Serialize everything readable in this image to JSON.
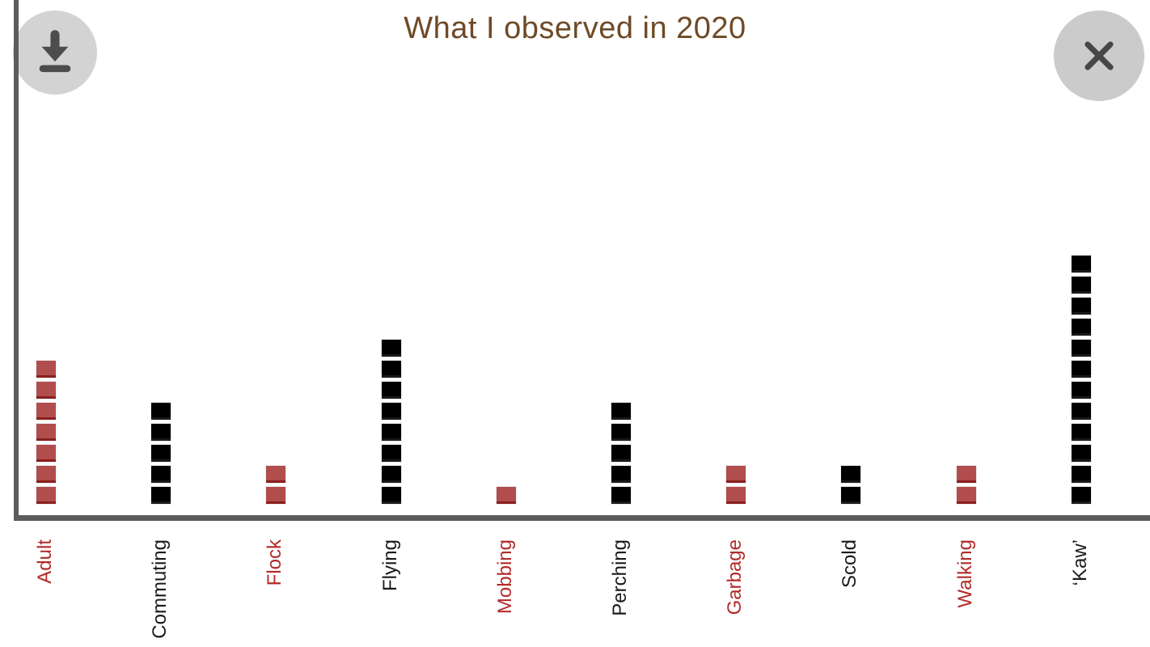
{
  "header": {
    "title": "What I observed in 2020",
    "title_color": "#6d4a26"
  },
  "toolbar": {
    "download_button": "download",
    "close_button": "close"
  },
  "colors": {
    "axis": "#5c5c5c",
    "button_background": "#d3d3d3",
    "button_icon": "#4d4d4d",
    "red_unit_fill": "#b14d4d",
    "red_unit_edge": "#8b1f1f",
    "black_unit_fill": "#000000",
    "red_label": "#b22a2a",
    "black_label": "#1a1a1a"
  },
  "chart_data": {
    "type": "bar",
    "variant": "unit-square-waffle-columns",
    "title": "What I observed in 2020",
    "xlabel": "",
    "ylabel": "",
    "legend": "none",
    "grid": false,
    "unit_value": 1,
    "ylim": [
      0,
      12
    ],
    "categories": [
      "Adult",
      "Commuting",
      "Flock",
      "Flying",
      "Mobbing",
      "Perching",
      "Garbage",
      "Scold",
      "Walking",
      "‘Kaw’"
    ],
    "values": [
      7,
      5,
      2,
      8,
      1,
      5,
      2,
      2,
      2,
      12
    ],
    "colors": [
      "#b14d4d",
      "#000000",
      "#b14d4d",
      "#000000",
      "#b14d4d",
      "#000000",
      "#b14d4d",
      "#000000",
      "#b14d4d",
      "#000000"
    ],
    "edge_colors": [
      "#8b1f1f",
      "#1a1a1a",
      "#8b1f1f",
      "#1a1a1a",
      "#8b1f1f",
      "#1a1a1a",
      "#8b1f1f",
      "#1a1a1a",
      "#8b1f1f",
      "#1a1a1a"
    ],
    "label_colors": [
      "#b22a2a",
      "#1a1a1a",
      "#b22a2a",
      "#1a1a1a",
      "#b22a2a",
      "#1a1a1a",
      "#b22a2a",
      "#1a1a1a",
      "#b22a2a",
      "#1a1a1a"
    ]
  }
}
